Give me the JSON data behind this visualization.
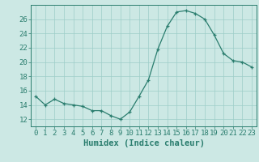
{
  "x": [
    0,
    1,
    2,
    3,
    4,
    5,
    6,
    7,
    8,
    9,
    10,
    11,
    12,
    13,
    14,
    15,
    16,
    17,
    18,
    19,
    20,
    21,
    22,
    23
  ],
  "y": [
    15.2,
    14.0,
    14.8,
    14.2,
    14.0,
    13.8,
    13.2,
    13.2,
    12.5,
    12.0,
    13.0,
    15.2,
    17.5,
    21.8,
    25.0,
    27.0,
    27.2,
    26.8,
    26.0,
    23.8,
    21.2,
    20.2,
    20.0,
    19.3
  ],
  "line_color": "#2a7d6e",
  "marker_color": "#2a7d6e",
  "bg_color": "#cce8e4",
  "grid_color": "#9ecdc8",
  "xlabel": "Humidex (Indice chaleur)",
  "ylim": [
    11,
    28
  ],
  "xlim": [
    -0.5,
    23.5
  ],
  "yticks": [
    12,
    14,
    16,
    18,
    20,
    22,
    24,
    26
  ],
  "xticks": [
    0,
    1,
    2,
    3,
    4,
    5,
    6,
    7,
    8,
    9,
    10,
    11,
    12,
    13,
    14,
    15,
    16,
    17,
    18,
    19,
    20,
    21,
    22,
    23
  ],
  "tick_label_size": 6.5,
  "xlabel_size": 7.5,
  "axis_color": "#2a7d6e",
  "tick_color": "#2a7d6e"
}
